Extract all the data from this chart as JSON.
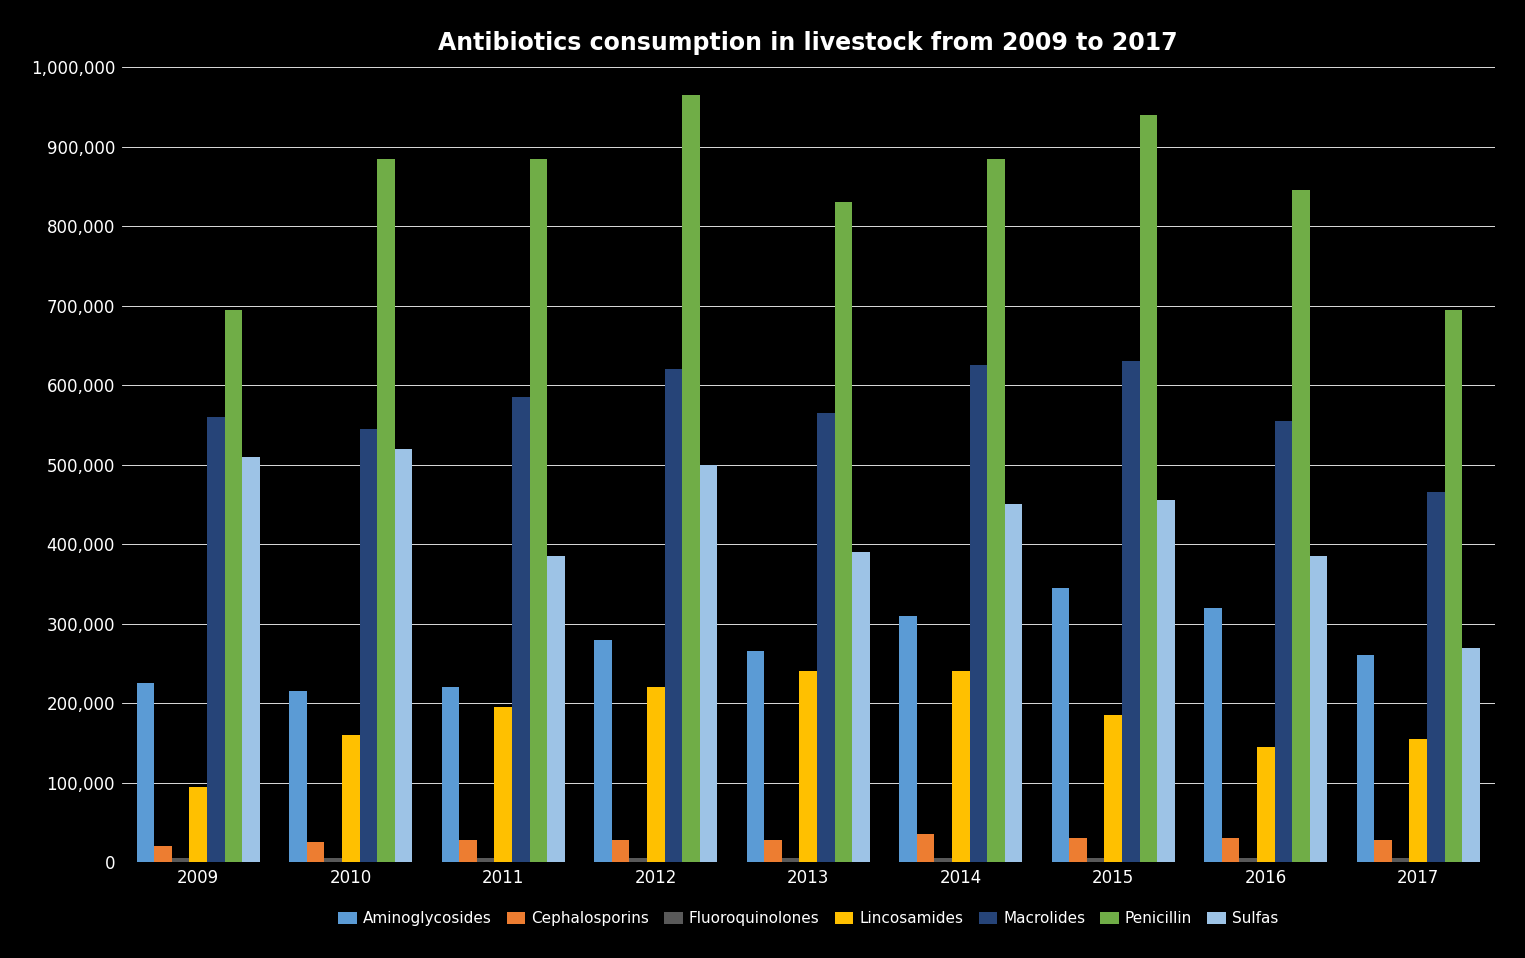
{
  "title": "Antibiotics consumption in livestock from 2009 to 2017",
  "years": [
    2009,
    2010,
    2011,
    2012,
    2013,
    2014,
    2015,
    2016,
    2017
  ],
  "series_names": [
    "Aminoglycosides",
    "Cephalosporins",
    "Fluoroquinolones",
    "Lincosamides",
    "Macrolides",
    "Penicillin",
    "Sulfas"
  ],
  "series_data": {
    "Aminoglycosides": [
      225000,
      215000,
      220000,
      280000,
      265000,
      310000,
      345000,
      320000,
      260000
    ],
    "Cephalosporins": [
      20000,
      25000,
      28000,
      28000,
      28000,
      35000,
      30000,
      30000,
      28000
    ],
    "Fluoroquinolones": [
      5000,
      5000,
      5000,
      5000,
      5000,
      5000,
      5000,
      5000,
      5000
    ],
    "Lincosamides": [
      95000,
      160000,
      195000,
      220000,
      240000,
      240000,
      185000,
      145000,
      155000
    ],
    "Macrolides": [
      560000,
      545000,
      585000,
      620000,
      565000,
      625000,
      630000,
      555000,
      465000
    ],
    "Penicillin": [
      695000,
      885000,
      885000,
      965000,
      830000,
      885000,
      940000,
      845000,
      695000
    ],
    "Sulfas": [
      510000,
      520000,
      385000,
      500000,
      390000,
      450000,
      455000,
      385000,
      270000
    ]
  },
  "bar_colors": {
    "Aminoglycosides": "#5B9BD5",
    "Cephalosporins": "#ED7D31",
    "Fluoroquinolones": "#595959",
    "Lincosamides": "#FFC000",
    "Macrolides": "#264478",
    "Penicillin": "#70AD47",
    "Sulfas": "#9DC3E6"
  },
  "ylim": [
    0,
    1000000
  ],
  "yticks": [
    0,
    100000,
    200000,
    300000,
    400000,
    500000,
    600000,
    700000,
    800000,
    900000,
    1000000
  ],
  "background_color": "#000000",
  "grid_color": "#FFFFFF",
  "text_color": "#FFFFFF",
  "title_fontsize": 17,
  "tick_fontsize": 12,
  "legend_fontsize": 11,
  "bar_width": 0.115
}
